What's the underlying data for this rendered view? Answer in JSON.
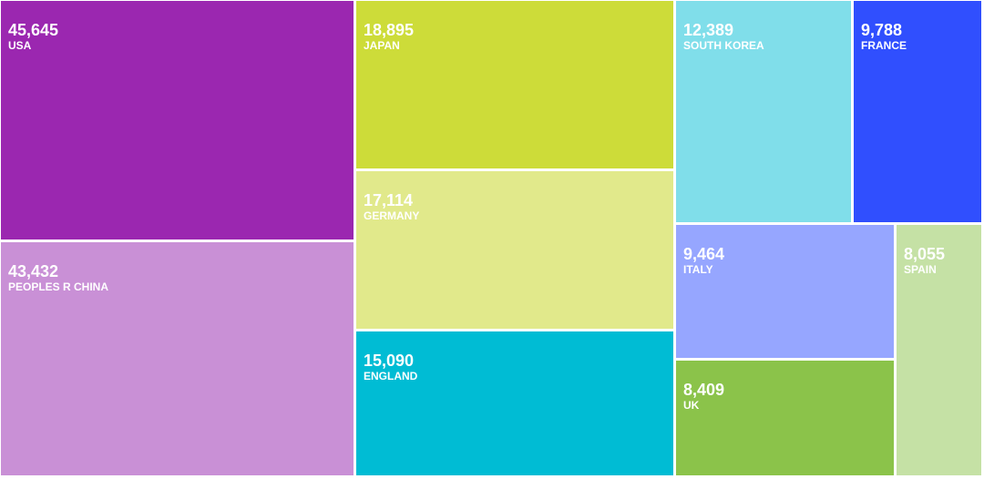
{
  "chart_data": {
    "type": "treemap",
    "items": [
      {
        "name": "USA",
        "value": 45645,
        "value_label": "45,645",
        "color": "#9b27b0"
      },
      {
        "name": "PEOPLES R CHINA",
        "value": 43432,
        "value_label": "43,432",
        "color": "#c990d6"
      },
      {
        "name": "JAPAN",
        "value": 18895,
        "value_label": "18,895",
        "color": "#cddc39"
      },
      {
        "name": "GERMANY",
        "value": 17114,
        "value_label": "17,114",
        "color": "#e1e98b"
      },
      {
        "name": "ENGLAND",
        "value": 15090,
        "value_label": "15,090",
        "color": "#00bcd4"
      },
      {
        "name": "SOUTH KOREA",
        "value": 12389,
        "value_label": "12,389",
        "color": "#80deea"
      },
      {
        "name": "FRANCE",
        "value": 9788,
        "value_label": "9,788",
        "color": "#304ffe"
      },
      {
        "name": "ITALY",
        "value": 9464,
        "value_label": "9,464",
        "color": "#96a6ff"
      },
      {
        "name": "UK",
        "value": 8409,
        "value_label": "8,409",
        "color": "#8bc34a"
      },
      {
        "name": "SPAIN",
        "value": 8055,
        "value_label": "8,055",
        "color": "#c5e1a5"
      }
    ]
  }
}
